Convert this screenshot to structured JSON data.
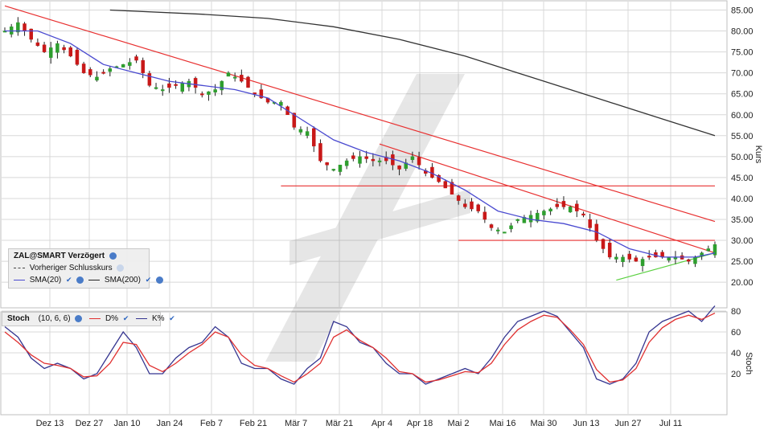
{
  "price_panel": {
    "y_axis_title": "Kurs",
    "y_ticks": [
      "85.00",
      "80.00",
      "75.00",
      "70.00",
      "65.00",
      "60.00",
      "55.00",
      "50.00",
      "45.00",
      "40.00",
      "35.00",
      "30.00",
      "25.00",
      "20.00"
    ]
  },
  "stoch_panel": {
    "y_axis_title": "Stoch",
    "y_ticks": [
      "80",
      "60",
      "40",
      "20"
    ]
  },
  "x_ticks": [
    "Dez 13",
    "Dez 27",
    "Jan 10",
    "Jan 24",
    "Feb 7",
    "Feb 21",
    "Mär 7",
    "Mär 21",
    "Apr 4",
    "Apr 18",
    "Mai 2",
    "Mai 16",
    "Mai 30",
    "Jun 13",
    "Jun 27",
    "Jul 11"
  ],
  "legend": {
    "title": "ZAL@SMART Verzögert",
    "prev_close": "Vorheriger Schlusskurs",
    "sma20": "SMA(20)",
    "sma200": "SMA(200)"
  },
  "stoch_legend": {
    "title": "Stoch",
    "params": "(10, 6, 6)",
    "d": "D%",
    "k": "K%"
  },
  "colors": {
    "up": "#2e9e2e",
    "down": "#c81818",
    "sma20": "#4a4ad0",
    "sma200": "#333333",
    "trend_red": "#e83030",
    "trend_green": "#5ad040",
    "stoch_k": "#353590",
    "stoch_d": "#e03030",
    "grid": "#d8d8d8"
  },
  "chart_data": [
    {
      "type": "candlestick",
      "y_axis_title": "Kurs",
      "ylim": [
        15,
        87
      ],
      "grid": true,
      "x_dates": [
        "Dez 13",
        "Dez 27",
        "Jan 10",
        "Jan 24",
        "Feb 7",
        "Feb 21",
        "Mär 7",
        "Mär 21",
        "Apr 4",
        "Apr 18",
        "Mai 2",
        "Mai 16",
        "Mai 30",
        "Jun 13",
        "Jun 27",
        "Jul 11"
      ],
      "close_path": [
        [
          0,
          80
        ],
        [
          2,
          82
        ],
        [
          4,
          78
        ],
        [
          6,
          75
        ],
        [
          8,
          77
        ],
        [
          10,
          74
        ],
        [
          12,
          70
        ],
        [
          14,
          69
        ],
        [
          16,
          71
        ],
        [
          18,
          72
        ],
        [
          20,
          73
        ],
        [
          22,
          67
        ],
        [
          24,
          66
        ],
        [
          26,
          67
        ],
        [
          28,
          68
        ],
        [
          30,
          65
        ],
        [
          32,
          66
        ],
        [
          34,
          70
        ],
        [
          36,
          68
        ],
        [
          38,
          65
        ],
        [
          40,
          63
        ],
        [
          42,
          63
        ],
        [
          44,
          57
        ],
        [
          46,
          56
        ],
        [
          48,
          49
        ],
        [
          50,
          47
        ],
        [
          52,
          49
        ],
        [
          54,
          50
        ],
        [
          56,
          49
        ],
        [
          58,
          49
        ],
        [
          60,
          47
        ],
        [
          62,
          50
        ],
        [
          64,
          46
        ],
        [
          66,
          44
        ],
        [
          68,
          41
        ],
        [
          70,
          38
        ],
        [
          72,
          37
        ],
        [
          74,
          33
        ],
        [
          76,
          32
        ],
        [
          78,
          35
        ],
        [
          80,
          36
        ],
        [
          82,
          37
        ],
        [
          84,
          38
        ],
        [
          86,
          38
        ],
        [
          88,
          36
        ],
        [
          90,
          30
        ],
        [
          92,
          26
        ],
        [
          94,
          26
        ],
        [
          96,
          25
        ],
        [
          98,
          26
        ],
        [
          100,
          26
        ],
        [
          102,
          26
        ],
        [
          104,
          25
        ],
        [
          106,
          27
        ],
        [
          108,
          29
        ]
      ],
      "sma20": [
        [
          0,
          80
        ],
        [
          5,
          80
        ],
        [
          10,
          77
        ],
        [
          15,
          72
        ],
        [
          20,
          70
        ],
        [
          25,
          68
        ],
        [
          30,
          67
        ],
        [
          35,
          66
        ],
        [
          40,
          64
        ],
        [
          45,
          59
        ],
        [
          50,
          54
        ],
        [
          55,
          51
        ],
        [
          60,
          49
        ],
        [
          65,
          46
        ],
        [
          70,
          42
        ],
        [
          75,
          37
        ],
        [
          80,
          35
        ],
        [
          85,
          34
        ],
        [
          90,
          32
        ],
        [
          95,
          28
        ],
        [
          100,
          26
        ],
        [
          105,
          26
        ],
        [
          108,
          27
        ]
      ],
      "sma200": [
        [
          16,
          85
        ],
        [
          30,
          84
        ],
        [
          40,
          83
        ],
        [
          50,
          81
        ],
        [
          60,
          78
        ],
        [
          70,
          74
        ],
        [
          80,
          69
        ],
        [
          90,
          64
        ],
        [
          100,
          59
        ],
        [
          108,
          55
        ]
      ],
      "lines": [
        {
          "name": "resistance-43",
          "from": [
            42,
            43
          ],
          "to": [
            108,
            43
          ],
          "color": "red"
        },
        {
          "name": "resistance-30",
          "from": [
            69,
            30
          ],
          "to": [
            108,
            30
          ],
          "color": "red"
        },
        {
          "name": "downtrend-1",
          "from": [
            0,
            86
          ],
          "to": [
            108,
            34.5
          ],
          "color": "red"
        },
        {
          "name": "downtrend-2",
          "from": [
            57,
            53
          ],
          "to": [
            108,
            27
          ],
          "color": "red"
        },
        {
          "name": "uptrend",
          "from": [
            93,
            20.5
          ],
          "to": [
            108,
            27
          ],
          "color": "green"
        }
      ]
    },
    {
      "type": "line",
      "y_axis_title": "Stoch",
      "ylim": [
        0,
        100
      ],
      "series": [
        {
          "name": "K%",
          "values": [
            [
              0,
              65
            ],
            [
              2,
              55
            ],
            [
              4,
              35
            ],
            [
              6,
              25
            ],
            [
              8,
              30
            ],
            [
              10,
              25
            ],
            [
              12,
              15
            ],
            [
              14,
              20
            ],
            [
              16,
              40
            ],
            [
              18,
              60
            ],
            [
              20,
              45
            ],
            [
              22,
              20
            ],
            [
              24,
              20
            ],
            [
              26,
              35
            ],
            [
              28,
              45
            ],
            [
              30,
              50
            ],
            [
              32,
              65
            ],
            [
              34,
              55
            ],
            [
              36,
              30
            ],
            [
              38,
              25
            ],
            [
              40,
              25
            ],
            [
              42,
              15
            ],
            [
              44,
              10
            ],
            [
              46,
              25
            ],
            [
              48,
              35
            ],
            [
              50,
              70
            ],
            [
              52,
              65
            ],
            [
              54,
              50
            ],
            [
              56,
              45
            ],
            [
              58,
              30
            ],
            [
              60,
              20
            ],
            [
              62,
              20
            ],
            [
              64,
              10
            ],
            [
              66,
              15
            ],
            [
              68,
              20
            ],
            [
              70,
              25
            ],
            [
              72,
              20
            ],
            [
              74,
              35
            ],
            [
              76,
              55
            ],
            [
              78,
              70
            ],
            [
              80,
              75
            ],
            [
              82,
              80
            ],
            [
              84,
              75
            ],
            [
              86,
              60
            ],
            [
              88,
              45
            ],
            [
              90,
              15
            ],
            [
              92,
              10
            ],
            [
              94,
              15
            ],
            [
              96,
              30
            ],
            [
              98,
              60
            ],
            [
              100,
              70
            ],
            [
              102,
              75
            ],
            [
              104,
              80
            ],
            [
              106,
              70
            ],
            [
              108,
              85
            ]
          ]
        },
        {
          "name": "D%",
          "values": [
            [
              0,
              60
            ],
            [
              2,
              50
            ],
            [
              4,
              38
            ],
            [
              6,
              30
            ],
            [
              8,
              28
            ],
            [
              10,
              25
            ],
            [
              12,
              17
            ],
            [
              14,
              18
            ],
            [
              16,
              30
            ],
            [
              18,
              50
            ],
            [
              20,
              48
            ],
            [
              22,
              28
            ],
            [
              24,
              22
            ],
            [
              26,
              30
            ],
            [
              28,
              40
            ],
            [
              30,
              48
            ],
            [
              32,
              60
            ],
            [
              34,
              55
            ],
            [
              36,
              38
            ],
            [
              38,
              28
            ],
            [
              40,
              25
            ],
            [
              42,
              18
            ],
            [
              44,
              12
            ],
            [
              46,
              20
            ],
            [
              48,
              30
            ],
            [
              50,
              55
            ],
            [
              52,
              62
            ],
            [
              54,
              52
            ],
            [
              56,
              45
            ],
            [
              58,
              35
            ],
            [
              60,
              22
            ],
            [
              62,
              20
            ],
            [
              64,
              12
            ],
            [
              66,
              14
            ],
            [
              68,
              18
            ],
            [
              70,
              22
            ],
            [
              72,
              21
            ],
            [
              74,
              30
            ],
            [
              76,
              48
            ],
            [
              78,
              62
            ],
            [
              80,
              70
            ],
            [
              82,
              76
            ],
            [
              84,
              74
            ],
            [
              86,
              62
            ],
            [
              88,
              48
            ],
            [
              90,
              24
            ],
            [
              92,
              12
            ],
            [
              94,
              14
            ],
            [
              96,
              25
            ],
            [
              98,
              50
            ],
            [
              100,
              64
            ],
            [
              102,
              72
            ],
            [
              104,
              76
            ],
            [
              106,
              72
            ],
            [
              108,
              78
            ]
          ]
        }
      ],
      "ref_levels": [
        20,
        80
      ]
    }
  ]
}
